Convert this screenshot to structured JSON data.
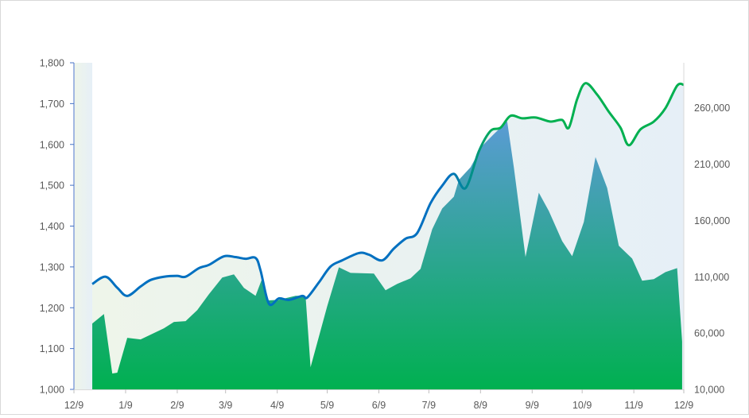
{
  "chart_data": {
    "type": "line+area",
    "title": "",
    "x_ticks": [
      "12/9",
      "1/9",
      "2/9",
      "3/9",
      "4/9",
      "5/9",
      "6/9",
      "7/9",
      "8/9",
      "9/9",
      "10/9",
      "11/9",
      "12/9"
    ],
    "y_left": {
      "range": [
        1000,
        1800
      ],
      "ticks": [
        "1,000",
        "1,100",
        "1,200",
        "1,300",
        "1,400",
        "1,500",
        "1,600",
        "1,700",
        "1,800"
      ]
    },
    "y_right": {
      "range": [
        10000,
        300000
      ],
      "ticks": [
        "10,000",
        "60,000",
        "110,000",
        "160,000",
        "210,000",
        "260,000"
      ]
    },
    "grid": false,
    "legend": "none",
    "colors": {
      "line_start": "#0070c0",
      "line_end": "#00b050",
      "area_bottom": "#00b050",
      "area_top": "#5b9bd5",
      "shade_left": "#eef5ea",
      "shade_right": "#e6eff7",
      "left_axis": "#4472c4",
      "right_axis": "#d9d9d9"
    },
    "series": [
      {
        "type": "line",
        "axis": "left",
        "x": [
          "12/20",
          "12/28",
          "1/4",
          "1/10",
          "1/18",
          "1/24",
          "2/1",
          "2/9",
          "2/14",
          "2/22",
          "2/28",
          "3/8",
          "3/15",
          "3/21",
          "3/27",
          "3/30",
          "4/4",
          "4/10",
          "4/16",
          "4/24",
          "4/27",
          "5/4",
          "5/11",
          "5/18",
          "5/28",
          "6/3",
          "6/11",
          "6/18",
          "6/25",
          "7/2",
          "7/10",
          "7/17",
          "7/24",
          "7/31",
          "8/8",
          "8/15",
          "8/21",
          "8/27",
          "9/3",
          "9/11",
          "9/20",
          "9/27",
          "10/1",
          "10/6",
          "10/11",
          "10/18",
          "10/25",
          "11/1",
          "11/6",
          "11/13",
          "11/21",
          "11/28",
          "12/5",
          "12/9"
        ],
        "y": [
          1258,
          1276,
          1249,
          1229,
          1252,
          1268,
          1276,
          1278,
          1276,
          1297,
          1305,
          1326,
          1324,
          1320,
          1322,
          1291,
          1210,
          1223,
          1219,
          1229,
          1225,
          1262,
          1301,
          1316,
          1334,
          1330,
          1316,
          1345,
          1369,
          1383,
          1456,
          1499,
          1528,
          1493,
          1583,
          1633,
          1641,
          1670,
          1664,
          1666,
          1656,
          1660,
          1641,
          1711,
          1750,
          1722,
          1680,
          1641,
          1598,
          1637,
          1656,
          1689,
          1744,
          1746
        ]
      },
      {
        "type": "area",
        "axis": "right",
        "x": [
          "12/20",
          "12/27",
          "1/1",
          "1/4",
          "1/10",
          "1/18",
          "1/25",
          "2/1",
          "2/7",
          "2/14",
          "2/21",
          "2/28",
          "3/7",
          "3/14",
          "3/20",
          "3/27",
          "3/31",
          "4/3",
          "4/10",
          "4/20",
          "4/26",
          "4/29",
          "5/9",
          "5/16",
          "5/23",
          "6/6",
          "6/13",
          "6/20",
          "6/28",
          "7/4",
          "7/11",
          "7/17",
          "7/24",
          "7/27",
          "8/3",
          "8/10",
          "8/17",
          "8/25",
          "8/29",
          "9/5",
          "9/13",
          "9/19",
          "9/27",
          "10/3",
          "10/10",
          "10/17",
          "10/24",
          "10/31",
          "11/8",
          "11/14",
          "11/21",
          "11/28",
          "12/5",
          "12/8"
        ],
        "y": [
          68450,
          76900,
          24100,
          24800,
          55800,
          54400,
          59300,
          64200,
          69900,
          70600,
          80400,
          94500,
          109300,
          112100,
          100100,
          93100,
          108600,
          88900,
          89600,
          93100,
          93100,
          29700,
          83900,
          118400,
          113500,
          112800,
          98000,
          103700,
          108600,
          117000,
          152200,
          170600,
          181100,
          196000,
          207200,
          226200,
          236700,
          248000,
          207200,
          127600,
          184600,
          168400,
          141700,
          128300,
          158600,
          216300,
          188900,
          137500,
          126200,
          106500,
          107900,
          114200,
          117700,
          52300
        ]
      }
    ]
  }
}
